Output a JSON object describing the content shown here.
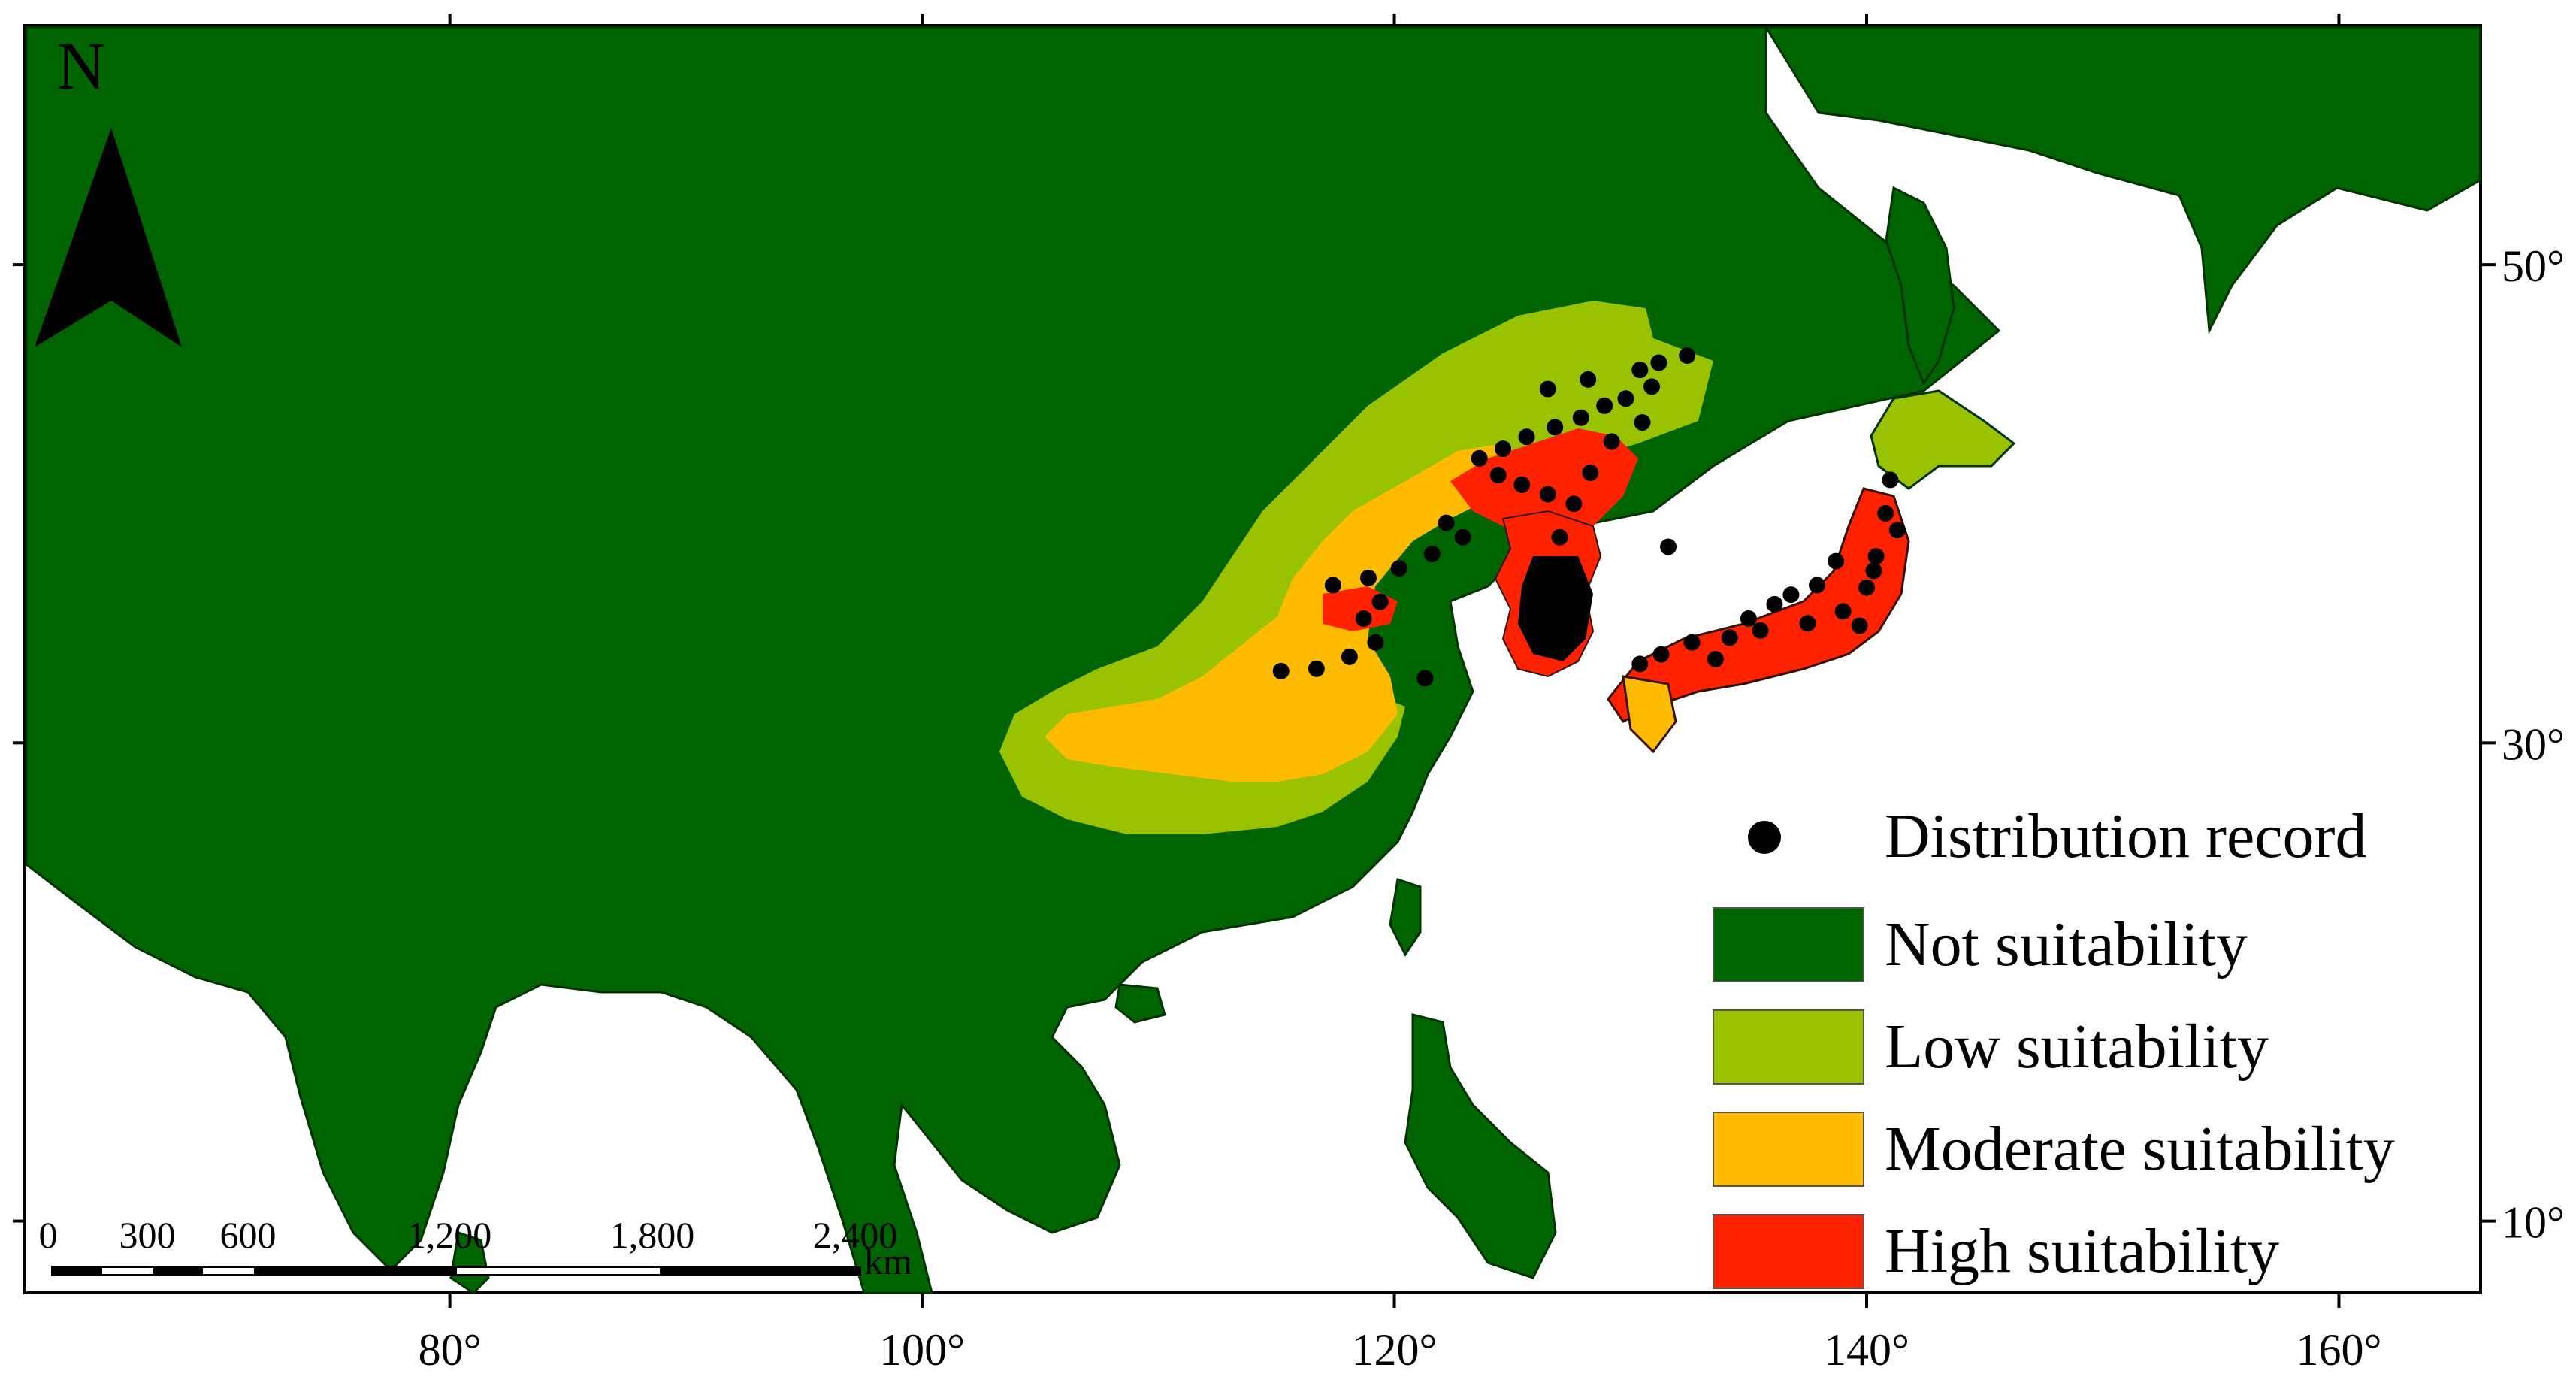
{
  "map": {
    "north_label": "N",
    "x_ticks": [
      {
        "value": 80,
        "label": "80°"
      },
      {
        "value": 100,
        "label": "100°"
      },
      {
        "value": 120,
        "label": "120°"
      },
      {
        "value": 140,
        "label": "140°"
      },
      {
        "value": 160,
        "label": "160°"
      }
    ],
    "y_ticks": [
      {
        "value": 50,
        "label": "50°"
      },
      {
        "value": 30,
        "label": "30°"
      },
      {
        "value": 10,
        "label": "10°"
      }
    ],
    "lon_range": [
      62,
      166
    ],
    "lat_range": [
      7,
      60
    ],
    "colors": {
      "not_suitability": "#006400",
      "low_suitability": "#99c200",
      "moderate_suitability": "#ffbb00",
      "high_suitability": "#ff2200",
      "record": "#000000",
      "sea": "#ffffff"
    }
  },
  "legend": {
    "record_label": "Distribution record",
    "items": [
      {
        "label": "Not suitability",
        "color": "#006400"
      },
      {
        "label": "Low suitability",
        "color": "#99c200"
      },
      {
        "label": "Moderate suitability",
        "color": "#ffbb00"
      },
      {
        "label": "High suitability",
        "color": "#ff2200"
      }
    ]
  },
  "scale_bar": {
    "labels": [
      "0",
      "300",
      "600",
      "1,200",
      "1,800",
      "2,400"
    ],
    "unit": "km"
  },
  "records": [
    [
      126.5,
      44.8
    ],
    [
      128.2,
      45.2
    ],
    [
      130.4,
      45.6
    ],
    [
      131.2,
      45.9
    ],
    [
      132.4,
      46.2
    ],
    [
      130.9,
      44.9
    ],
    [
      129.8,
      44.4
    ],
    [
      128.9,
      44.1
    ],
    [
      127.9,
      43.6
    ],
    [
      126.8,
      43.2
    ],
    [
      125.6,
      42.8
    ],
    [
      124.6,
      42.3
    ],
    [
      123.6,
      41.9
    ],
    [
      124.4,
      41.2
    ],
    [
      125.4,
      40.8
    ],
    [
      126.5,
      40.4
    ],
    [
      127.6,
      40.0
    ],
    [
      128.3,
      41.3
    ],
    [
      129.2,
      42.6
    ],
    [
      130.5,
      43.4
    ],
    [
      122.2,
      39.2
    ],
    [
      122.9,
      38.6
    ],
    [
      121.6,
      37.9
    ],
    [
      120.2,
      37.3
    ],
    [
      118.9,
      36.9
    ],
    [
      117.4,
      36.6
    ],
    [
      119.4,
      35.9
    ],
    [
      118.7,
      35.2
    ],
    [
      119.2,
      34.2
    ],
    [
      118.1,
      33.6
    ],
    [
      116.7,
      33.1
    ],
    [
      115.2,
      33.0
    ],
    [
      121.3,
      32.7
    ],
    [
      127.0,
      38.6
    ],
    [
      131.6,
      38.2
    ],
    [
      137.5,
      35.0
    ],
    [
      139.0,
      35.5
    ],
    [
      140.0,
      36.5
    ],
    [
      140.4,
      37.8
    ],
    [
      140.8,
      39.6
    ],
    [
      141.0,
      41.0
    ],
    [
      138.7,
      37.6
    ],
    [
      136.8,
      36.2
    ],
    [
      135.5,
      34.7
    ],
    [
      134.2,
      34.4
    ],
    [
      132.6,
      34.2
    ],
    [
      131.3,
      33.7
    ],
    [
      130.4,
      33.3
    ],
    [
      133.6,
      33.5
    ],
    [
      139.7,
      34.9
    ],
    [
      137.9,
      36.6
    ],
    [
      135.0,
      35.2
    ],
    [
      140.3,
      37.2
    ],
    [
      141.3,
      38.9
    ],
    [
      136.1,
      35.8
    ]
  ]
}
